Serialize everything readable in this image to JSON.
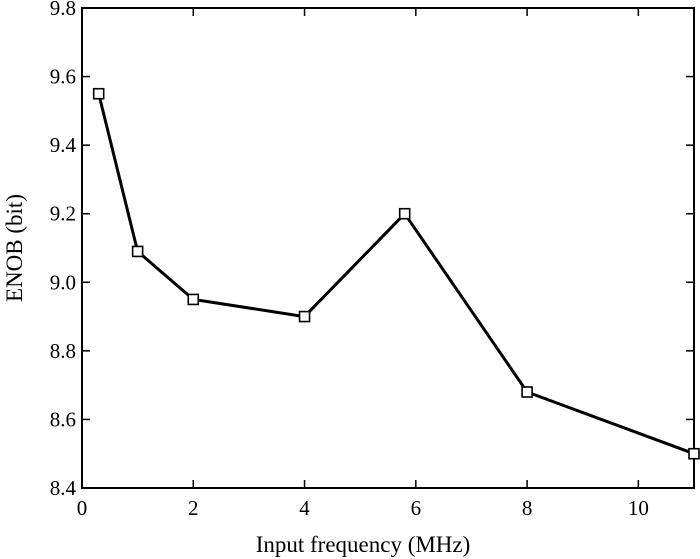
{
  "chart_data": {
    "type": "line",
    "title": "",
    "xlabel": "Input frequency (MHz)",
    "ylabel": "ENOB (bit)",
    "xlim": [
      0,
      11
    ],
    "ylim": [
      8.4,
      9.8
    ],
    "x_ticks": [
      0,
      2,
      4,
      6,
      8,
      10
    ],
    "x_tick_labels": [
      "0",
      "2",
      "4",
      "6",
      "8",
      "10"
    ],
    "y_ticks": [
      8.4,
      8.6,
      8.8,
      9.0,
      9.2,
      9.4,
      9.6,
      9.8
    ],
    "y_tick_labels": [
      "8.4",
      "8.6",
      "8.8",
      "9.0",
      "9.2",
      "9.4",
      "9.6",
      "9.8"
    ],
    "grid": false,
    "legend": "none",
    "series": [
      {
        "marker": "square",
        "color": "#000000",
        "x": [
          0.3,
          1.0,
          2.0,
          4.0,
          5.8,
          8.0,
          11.0
        ],
        "y": [
          9.55,
          9.09,
          8.95,
          8.9,
          9.2,
          8.68,
          8.5
        ]
      }
    ]
  }
}
